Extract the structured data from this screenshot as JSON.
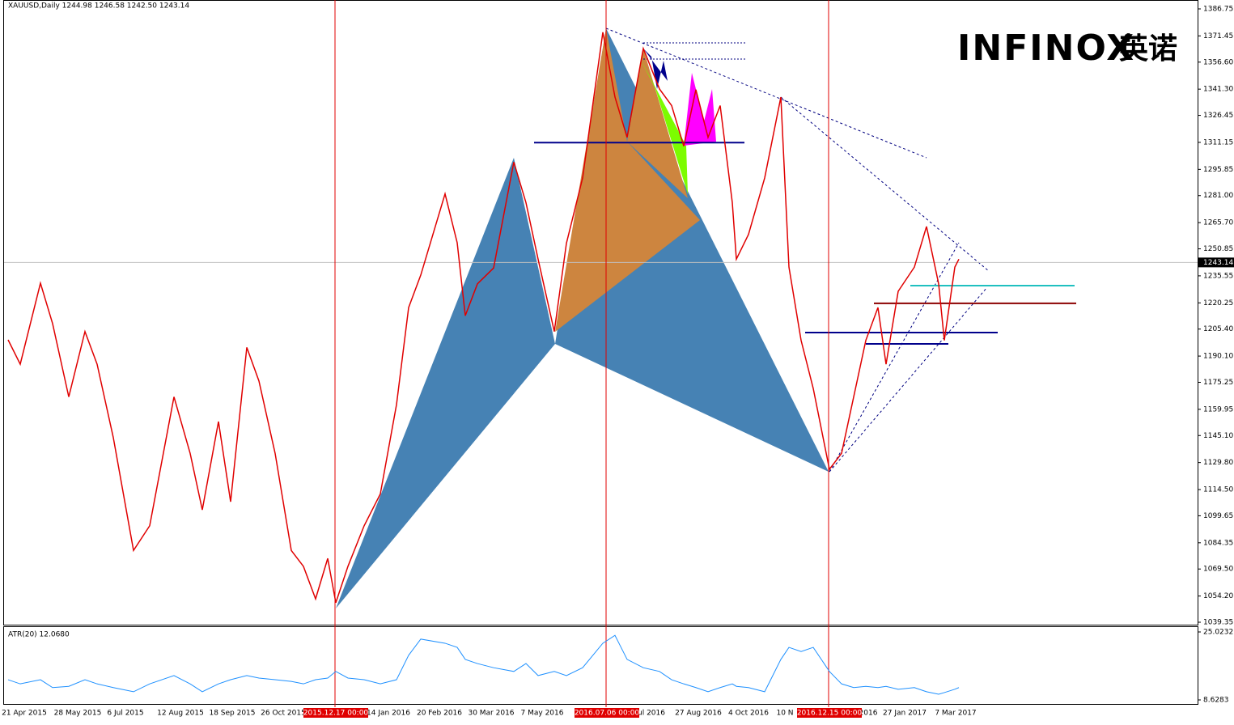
{
  "chart_data": [
    {
      "type": "line",
      "title": "XAUUSD,Daily  1244.98 1246.58 1242.50 1243.14",
      "logo": "INFINOX",
      "logo_cn": "英诺",
      "series": [
        {
          "name": "XAUUSD",
          "color": "#e00000",
          "values": [
            1199.3,
            1185.5,
            1231.4,
            1208.5,
            1167,
            1204,
            1185.5,
            1144,
            1080,
            1094,
            1167,
            1135,
            1103,
            1153,
            1107.6,
            1195,
            1176,
            1135,
            1080,
            1071,
            1052.6,
            1075.5,
            1050.4,
            1071,
            1094,
            1112,
            1162.6,
            1217.6,
            1236,
            1282,
            1254.3,
            1213,
            1231,
            1240,
            1300,
            1277,
            1245,
            1204,
            1254,
            1291,
            1373.5,
            1336.8,
            1314,
            1364.3,
            1341.4,
            1332,
            1309,
            1341,
            1314,
            1332,
            1277,
            1245,
            1259,
            1291,
            1336.8,
            1240.5,
            1199,
            1171.8,
            1126,
            1135,
            1167,
            1199,
            1217.6,
            1185.5,
            1226.8,
            1240.5,
            1263.5,
            1231,
            1199,
            1240.5,
            1245
          ]
        }
      ],
      "x_labels": [
        "21 Apr 2015",
        "28 May 2015",
        "6 Jul 2015",
        "12 Aug 2015",
        "18 Sep 2015",
        "26 Oct 2015",
        "14 Jan 2016",
        "20 Feb 2016",
        "30 Mar 2016",
        "7 May 2016",
        "ul 2016",
        "27 Aug 2016",
        "4 Oct 2016",
        "10 N",
        "2016",
        "27 Jan 2017",
        "7 Mar 2017"
      ],
      "events": [
        "2015.12.17 00:00",
        "2016.07.06 00:00",
        "2016.12.15 00:00"
      ],
      "current": 1243.14,
      "levels": [
        {
          "value": 1311,
          "color": "#00008b"
        },
        {
          "value": 1230,
          "color": "#20c0c0"
        },
        {
          "value": 1220,
          "color": "#8b0000"
        },
        {
          "value": 1203.4,
          "color": "#00008b"
        },
        {
          "value": 1197,
          "color": "#00008b"
        }
      ],
      "ylim": [
        1039.35,
        1386.75
      ],
      "yticks": [
        1386.75,
        1371.45,
        {
          "value": 1356.6,
          "label": "1356.60"
        },
        {
          "value": 1341.3,
          "label": "1341.30"
        },
        1326.45,
        1311.15,
        1295.85,
        {
          "value": 1281,
          "label": "1281.00"
        },
        {
          "value": 1265.7,
          "label": "1265.70"
        },
        1250.85,
        1235.55,
        1220.25,
        {
          "value": 1205.4,
          "label": "1205.40"
        },
        {
          "value": 1190.1,
          "label": "1190.10"
        },
        1175.25,
        1159.95,
        {
          "value": 1145.1,
          "label": "1145.10"
        },
        {
          "value": 1129.8,
          "label": "1129.80"
        },
        {
          "value": 1114.5,
          "label": "1114.50"
        },
        1099.65,
        1084.35,
        {
          "value": 1069.5,
          "label": "1069.50"
        },
        {
          "value": 1054.2,
          "label": "1054.20"
        },
        1039.35
      ]
    },
    {
      "type": "line",
      "title": "ATR(20) 12.0680",
      "series": [
        {
          "name": "ATR(20)",
          "color": "#1e90ff",
          "values": [
            13.5,
            12.5,
            13.5,
            11.6,
            11.9,
            13.5,
            12.5,
            11.6,
            10.6,
            12.5,
            14.5,
            12.5,
            10.6,
            12.5,
            13.5,
            14.5,
            13.9,
            13.5,
            13.1,
            12.5,
            13.5,
            13.9,
            15.5,
            13.9,
            13.5,
            12.5,
            13.5,
            19.4,
            23.3,
            22.3,
            21.3,
            18.4,
            17.4,
            16.4,
            15.5,
            17.4,
            14.5,
            15.5,
            14.5,
            16.4,
            22.3,
            24.2,
            18.4,
            16.4,
            15.5,
            13.5,
            12.5,
            11.6,
            10.6,
            11.6,
            12.5,
            11.9,
            11.6,
            10.6,
            18.4,
            21.3,
            20.3,
            21.3,
            15.5,
            12.5,
            11.6,
            11.9,
            11.6,
            11.9,
            11.2,
            11.6,
            10.6,
            10.0,
            10.4,
            11.2,
            11.6
          ]
        }
      ],
      "ylim": [
        8.6283,
        25.0232
      ],
      "yticks": [
        25.0232,
        8.6283
      ]
    }
  ]
}
